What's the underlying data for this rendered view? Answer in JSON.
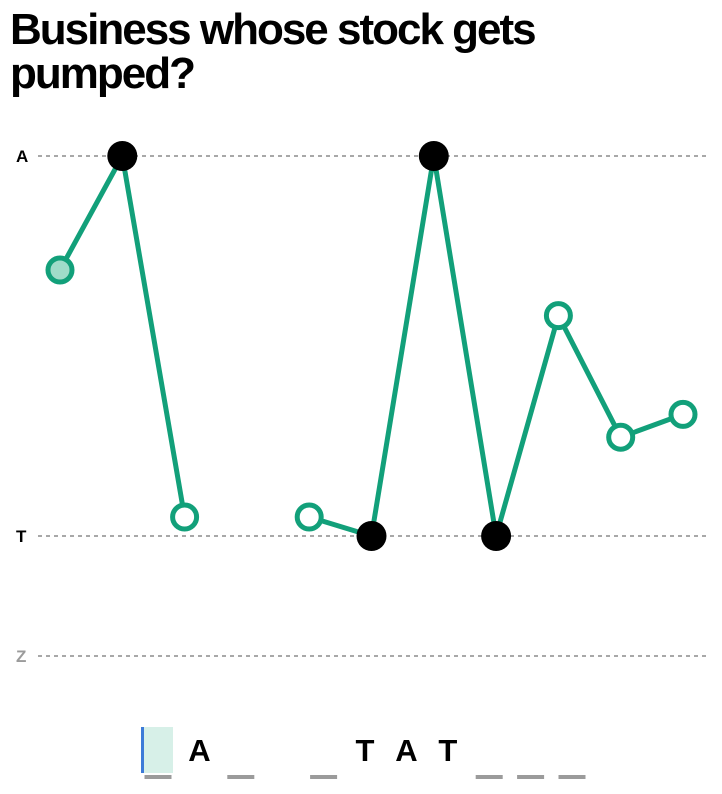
{
  "puzzle": {
    "clue": "Business whose stock gets pumped?",
    "levels": [
      {
        "label": "A",
        "color": "#000000"
      },
      {
        "label": "T",
        "color": "#000000"
      },
      {
        "label": "Z",
        "color": "#9b9b9b"
      }
    ],
    "accent_color": "#12a07a",
    "cursor_color": "#3d7bd8",
    "active_slot": 0,
    "slots": [
      {
        "letter": "",
        "state": "guess",
        "value": 0.7
      },
      {
        "letter": "A",
        "state": "revealed",
        "value": 1.0
      },
      {
        "letter": "",
        "state": "guess",
        "value": 0.05
      },
      {
        "letter": "",
        "state": "gap",
        "value": null
      },
      {
        "letter": "",
        "state": "guess",
        "value": 0.05
      },
      {
        "letter": "T",
        "state": "revealed",
        "value": 0.0
      },
      {
        "letter": "A",
        "state": "revealed",
        "value": 1.0
      },
      {
        "letter": "T",
        "state": "revealed",
        "value": 0.0
      },
      {
        "letter": "",
        "state": "guess",
        "value": 0.58
      },
      {
        "letter": "",
        "state": "guess",
        "value": 0.26
      },
      {
        "letter": "",
        "state": "guess",
        "value": 0.32
      }
    ]
  }
}
